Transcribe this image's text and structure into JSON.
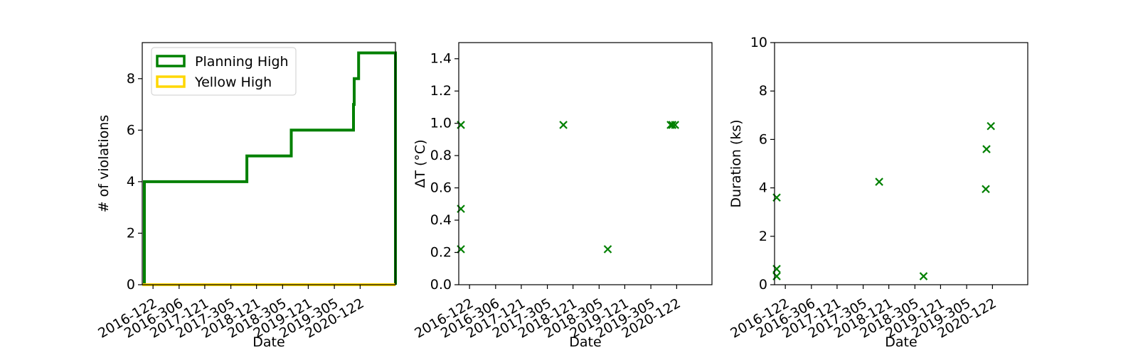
{
  "chart_data": [
    {
      "type": "line",
      "xlabel": "Date",
      "ylabel": "# of violations",
      "x_unit": "days",
      "xlim": [
        "2016-02-15",
        "2021-01-05"
      ],
      "ylim": [
        0,
        9.4
      ],
      "xticks": [
        "2016-05-01",
        "2016-11-01",
        "2017-05-01",
        "2017-11-01",
        "2018-05-01",
        "2018-11-01",
        "2019-05-01",
        "2019-11-01",
        "2020-05-01"
      ],
      "xtick_labels": [
        "2016-122",
        "2016-306",
        "2017-121",
        "2017-305",
        "2018-121",
        "2018-305",
        "2019-121",
        "2019-305",
        "2020-122"
      ],
      "yticks": [
        0,
        2,
        4,
        6,
        8
      ],
      "grid": false,
      "legend_position": "top-left",
      "series": [
        {
          "name": "Planning High",
          "color": "#008000",
          "style": "step",
          "x": [
            "2016-03-01",
            "2016-03-01",
            "2018-02-22",
            "2018-02-22",
            "2019-01-01",
            "2019-01-01",
            "2020-03-15",
            "2020-03-15",
            "2020-03-20",
            "2020-03-20",
            "2020-04-01",
            "2020-04-01",
            "2020-04-20",
            "2020-04-20",
            "2021-01-05",
            "2021-01-05"
          ],
          "values": [
            0,
            4,
            4,
            5,
            5,
            6,
            6,
            7,
            7,
            8,
            8,
            8,
            8,
            9,
            9,
            0
          ]
        },
        {
          "name": "Yellow High",
          "color": "#FFD700",
          "style": "step",
          "x": [
            "2016-02-15",
            "2021-01-05"
          ],
          "values": [
            0,
            0
          ]
        }
      ]
    },
    {
      "type": "scatter",
      "xlabel": "Date",
      "ylabel": "ΔT (°C)",
      "xlim": [
        "2016-02-15",
        "2021-01-05"
      ],
      "ylim": [
        0,
        1.5
      ],
      "xticks": [
        "2016-05-01",
        "2016-11-01",
        "2017-05-01",
        "2017-11-01",
        "2018-05-01",
        "2018-11-01",
        "2019-05-01",
        "2019-11-01",
        "2020-05-01"
      ],
      "xtick_labels": [
        "2016-122",
        "2016-306",
        "2017-121",
        "2017-305",
        "2018-121",
        "2018-305",
        "2019-121",
        "2019-305",
        "2020-122"
      ],
      "yticks": [
        0.0,
        0.2,
        0.4,
        0.6,
        0.8,
        1.0,
        1.2,
        1.4
      ],
      "ytick_labels": [
        "0.0",
        "0.2",
        "0.4",
        "0.6",
        "0.8",
        "1.0",
        "1.2",
        "1.4"
      ],
      "grid": false,
      "series": [
        {
          "color": "#008000",
          "marker": "x",
          "x": [
            "2016-03-01",
            "2016-03-01",
            "2016-03-01",
            "2018-02-22",
            "2019-01-01",
            "2020-03-20",
            "2020-04-01",
            "2020-04-20"
          ],
          "values": [
            0.99,
            0.47,
            0.22,
            0.99,
            0.22,
            0.99,
            0.99,
            0.99
          ]
        }
      ]
    },
    {
      "type": "scatter",
      "xlabel": "Date",
      "ylabel": "Duration (ks)",
      "xlim": [
        "2016-02-15",
        "2021-01-05"
      ],
      "ylim": [
        0,
        10
      ],
      "xticks": [
        "2016-05-01",
        "2016-11-01",
        "2017-05-01",
        "2017-11-01",
        "2018-05-01",
        "2018-11-01",
        "2019-05-01",
        "2019-11-01",
        "2020-05-01"
      ],
      "xtick_labels": [
        "2016-122",
        "2016-306",
        "2017-121",
        "2017-305",
        "2018-121",
        "2018-305",
        "2019-121",
        "2019-305",
        "2020-122"
      ],
      "yticks": [
        0,
        2,
        4,
        6,
        8,
        10
      ],
      "grid": false,
      "series": [
        {
          "color": "#008000",
          "marker": "x",
          "x": [
            "2016-03-01",
            "2016-03-01",
            "2016-03-01",
            "2018-02-22",
            "2019-01-01",
            "2020-03-15",
            "2020-03-20",
            "2020-04-20"
          ],
          "values": [
            3.6,
            0.65,
            0.35,
            4.25,
            0.35,
            3.95,
            5.6,
            6.55
          ]
        }
      ]
    }
  ]
}
